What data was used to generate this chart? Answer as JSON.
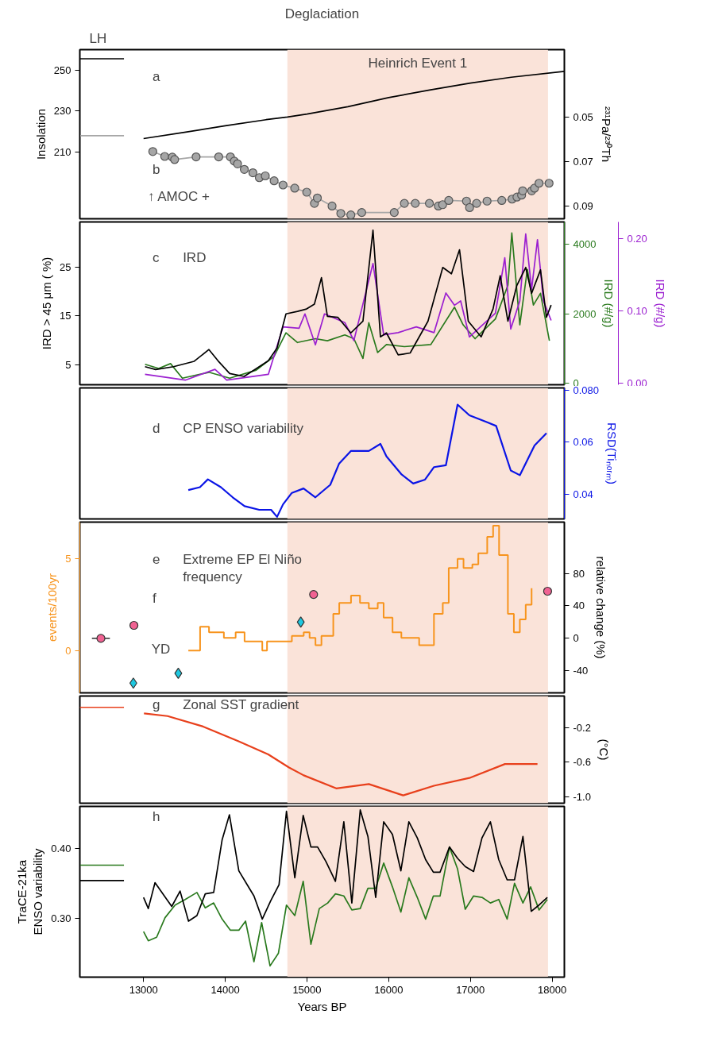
{
  "chart_data": [
    {
      "type": "line",
      "title": "Deglaciation",
      "subtitle": "LH",
      "ylabel": "Insolation",
      "y2label": "²³¹Pa/²³⁰Th",
      "xlim": [
        12220,
        18150
      ],
      "tick_labels": "y",
      "ylim": [
        177,
        260.3
      ],
      "yticks": [
        210,
        230,
        250
      ],
      "y2lim": [
        0.0956,
        0.0199
      ],
      "y2ticks": [
        0.05,
        0.07,
        0.09
      ],
      "series": [
        {
          "color": "#000000",
          "x": [
            13000,
            13500,
            14000,
            14500,
            14760,
            15000,
            15500,
            16000,
            16500,
            17000,
            17500,
            18150
          ],
          "values": [
            216.5,
            219.6,
            222.8,
            225.8,
            227.1,
            228.6,
            232.2,
            236.7,
            240.4,
            243.8,
            246.7,
            249.6
          ]
        },
        {
          "marker": "circle",
          "axis": "y2",
          "color": "#a6a6a6",
          "x": [
            13113,
            13259,
            13352,
            13380,
            13643,
            13920,
            14063,
            14110,
            14150,
            14233,
            14338,
            14417,
            14490,
            14598,
            14707,
            14850,
            14997,
            15091,
            15127,
            15307,
            15414,
            15537,
            15670,
            16068,
            16192,
            16325,
            16498,
            16608,
            16660,
            16735,
            16952,
            16990,
            17076,
            17204,
            17384,
            17510,
            17570,
            17627,
            17640,
            17750,
            17785,
            17840,
            17963
          ],
          "values": [
            0.0655,
            0.0677,
            0.068,
            0.0691,
            0.0679,
            0.0679,
            0.0679,
            0.0698,
            0.071,
            0.0735,
            0.075,
            0.0772,
            0.0764,
            0.0786,
            0.0805,
            0.0819,
            0.0837,
            0.0887,
            0.0863,
            0.0899,
            0.0932,
            0.0939,
            0.0928,
            0.0928,
            0.0887,
            0.0887,
            0.0887,
            0.0899,
            0.0893,
            0.0874,
            0.0877,
            0.0906,
            0.0887,
            0.0877,
            0.0874,
            0.0868,
            0.0859,
            0.085,
            0.0831,
            0.0831,
            0.0819,
            0.0797,
            0.0797
          ]
        },
        {
          "color": "#000000",
          "x": [
            12220,
            12760
          ],
          "values": [
            255.8,
            255.8
          ]
        },
        {
          "axis": "y2",
          "color": "#a6a6a6",
          "x": [
            12220,
            12760
          ],
          "values": [
            0.0584,
            0.0584
          ]
        }
      ],
      "bands": [
        {
          "axis": "x",
          "from": 14760,
          "to": 17950,
          "label": "Heinrich Event 1",
          "color": "#fae3d9"
        }
      ],
      "annotations": [
        "a",
        "b",
        "↑ AMOC +"
      ]
    },
    {
      "type": "line",
      "ylabel": "IRD > 45 μm ( %)",
      "y2label": "IRD (#/g)",
      "y3label": "IRD (#/g)",
      "xlim": [
        12220,
        18150
      ],
      "tick_labels": "y",
      "ylim": [
        0.9,
        34.2
      ],
      "yticks": [
        5,
        15,
        25
      ],
      "y2lim": [
        -50,
        4650
      ],
      "y2ticks": [
        0,
        2000,
        4000
      ],
      "y3lim": [
        -0.0024,
        0.2237
      ],
      "y3ticks": [
        {
          "value": 0,
          "label": "0.00"
        },
        {
          "value": 0.1,
          "label": "0.10"
        },
        {
          "value": 0.2,
          "label": "0.20"
        }
      ],
      "series": [
        {
          "axis": "y2",
          "color": "#2a7a1e",
          "x": [
            13018,
            13185,
            13330,
            13475,
            13800,
            14054,
            14379,
            14598,
            14743,
            14884,
            15103,
            15250,
            15463,
            15574,
            15685,
            15757,
            15865,
            15973,
            16192,
            16516,
            16806,
            16911,
            17057,
            17306,
            17459,
            17507,
            17605,
            17697,
            17771,
            17858,
            17967
          ],
          "values": [
            540,
            420,
            560,
            140,
            310,
            140,
            370,
            770,
            1450,
            1170,
            1280,
            1220,
            1390,
            1280,
            710,
            1740,
            880,
            1110,
            1050,
            1110,
            2190,
            1680,
            1280,
            1850,
            2820,
            4330,
            1680,
            3280,
            2250,
            2590,
            1220
          ]
        },
        {
          "axis": "y3",
          "color": "#9b1fd0",
          "x": [
            13018,
            13511,
            13874,
            14018,
            14527,
            14707,
            14903,
            14975,
            15103,
            15214,
            15463,
            15574,
            15808,
            15939,
            16116,
            16338,
            16555,
            16700,
            16806,
            16881,
            16988,
            17306,
            17421,
            17494,
            17605,
            17677,
            17749,
            17821,
            17894,
            17988
          ],
          "values": [
            0.012,
            0.004,
            0.019,
            0.004,
            0.012,
            0.078,
            0.076,
            0.096,
            0.053,
            0.096,
            0.084,
            0.059,
            0.166,
            0.067,
            0.07,
            0.078,
            0.07,
            0.125,
            0.108,
            0.114,
            0.064,
            0.097,
            0.174,
            0.075,
            0.114,
            0.207,
            0.13,
            0.199,
            0.114,
            0.087
          ]
        },
        {
          "color": "#000000",
          "x": [
            13018,
            13148,
            13367,
            13620,
            13800,
            13911,
            14054,
            14231,
            14379,
            14527,
            14634,
            14743,
            14884,
            14995,
            15091,
            15177,
            15250,
            15377,
            15537,
            15685,
            15808,
            15899,
            15973,
            16116,
            16263,
            16481,
            16662,
            16768,
            16867,
            16974,
            17132,
            17277,
            17365,
            17459,
            17568,
            17677,
            17749,
            17858,
            17931,
            17988
          ],
          "values": [
            4.6,
            4.0,
            4.6,
            5.7,
            8.1,
            5.8,
            3.2,
            2.6,
            4.2,
            5.8,
            8.4,
            15.4,
            15.9,
            16.4,
            17.4,
            22.8,
            14.9,
            14.7,
            11.5,
            13.9,
            32.5,
            10.7,
            11.5,
            7.0,
            7.4,
            13.9,
            24.9,
            23.6,
            28.5,
            13.9,
            10.7,
            16.4,
            23.2,
            13.9,
            21.2,
            24.9,
            19.6,
            24.4,
            14.7,
            17.2
          ]
        }
      ],
      "bands": [
        {
          "axis": "x",
          "from": 14760,
          "to": 17950,
          "color": "#fae3d9"
        }
      ],
      "annotations": [
        "c",
        "IRD"
      ]
    },
    {
      "type": "line",
      "y2label": "RSD(Tiₙₒᵣₘ)",
      "xlim": [
        12220,
        18150
      ],
      "tick_labels": "y",
      "y2lim": [
        0.0305,
        0.0808
      ],
      "y2ticks": [
        0.04,
        0.06,
        {
          "value": 0.08,
          "label": "0.080"
        }
      ],
      "series": [
        {
          "axis": "y2",
          "color": "#0a14e6",
          "x": [
            13548,
            13690,
            13787,
            13946,
            14091,
            14236,
            14416,
            14561,
            14634,
            14707,
            14815,
            14958,
            15103,
            15285,
            15394,
            15537,
            15757,
            15899,
            15973,
            16154,
            16300,
            16445,
            16555,
            16700,
            16843,
            16988,
            17206,
            17315,
            17494,
            17605,
            17785,
            17931
          ],
          "values": [
            0.0416,
            0.0427,
            0.0457,
            0.0427,
            0.0388,
            0.0354,
            0.034,
            0.034,
            0.0313,
            0.0361,
            0.0405,
            0.0422,
            0.0388,
            0.0436,
            0.0518,
            0.0566,
            0.0566,
            0.0593,
            0.0545,
            0.0477,
            0.0441,
            0.0456,
            0.0504,
            0.0511,
            0.0744,
            0.0703,
            0.0676,
            0.0662,
            0.0491,
            0.0473,
            0.0587,
            0.0634
          ]
        }
      ],
      "bands": [
        {
          "axis": "x",
          "from": 14760,
          "to": 17950,
          "color": "#fae3d9"
        }
      ],
      "annotations": [
        "d",
        "CP ENSO variability"
      ]
    },
    {
      "type": "step",
      "ylabel": "events/100yr",
      "y2label": "relative change (%)",
      "xlim": [
        12220,
        18150
      ],
      "tick_labels": "y",
      "ylim": [
        -2.3,
        7.0
      ],
      "yticks": [
        0,
        5
      ],
      "y2lim": [
        -67,
        143
      ],
      "y2ticks": [
        -40,
        0,
        40,
        80
      ],
      "series": [
        {
          "color": "#f7941d",
          "x": [
            13548,
            13692,
            13801,
            13983,
            14127,
            14236,
            14453,
            14511,
            14779,
            14815,
            14960,
            15032,
            15104,
            15177,
            15322,
            15395,
            15539,
            15649,
            15757,
            15866,
            15938,
            16047,
            16155,
            16265,
            16373,
            16481,
            16554,
            16662,
            16735,
            16843,
            16916,
            17024,
            17097,
            17206,
            17278,
            17351,
            17459,
            17532,
            17605,
            17677,
            17749
          ],
          "values": [
            0,
            1.3,
            1.0,
            0.7,
            1.0,
            0.5,
            0,
            0.5,
            0.5,
            0.8,
            1.0,
            0.7,
            0.3,
            0.8,
            2.0,
            2.6,
            3.0,
            2.6,
            2.3,
            2.6,
            1.8,
            1.0,
            0.7,
            0.7,
            0.3,
            0.3,
            2.0,
            2.6,
            4.5,
            5.0,
            4.5,
            4.7,
            5.3,
            6.2,
            6.8,
            5.2,
            2.0,
            1.0,
            1.7,
            2.5,
            3.4
          ]
        },
        {
          "type": "scatter",
          "marker": "circle",
          "axis": "y2",
          "color": "#f06292",
          "x": [
            12882,
            15081,
            17945
          ],
          "values": [
            16,
            54,
            58
          ]
        },
        {
          "type": "scatter",
          "marker": "circle",
          "axis": "y2",
          "color": "#f06292",
          "x": [
            12478
          ],
          "values": [
            0
          ],
          "xerrors": [
            110
          ]
        },
        {
          "type": "scatter",
          "marker": "diamond",
          "axis": "y2",
          "color": "#1ec8e0",
          "x": [
            12875,
            13425,
            14924
          ],
          "values": [
            -55,
            -43,
            20
          ]
        }
      ],
      "bands": [
        {
          "axis": "x",
          "from": 14760,
          "to": 17950,
          "color": "#fae3d9"
        }
      ],
      "annotations": [
        "e",
        "Extreme EP El Niño\nfrequency",
        "f",
        "YD"
      ]
    },
    {
      "type": "line",
      "y2label": "(°C)",
      "xlim": [
        12220,
        18150
      ],
      "tick_labels": "y",
      "y2lim": [
        -1.07,
        0.16
      ],
      "y2ticks": [
        -0.2,
        -0.6,
        {
          "value": -1.0,
          "label": "-1.0"
        }
      ],
      "series": [
        {
          "axis": "y2",
          "color": "#e8401c",
          "x": [
            13005,
            13294,
            13729,
            14163,
            14526,
            14780,
            14960,
            15358,
            15757,
            16177,
            16554,
            16988,
            17423,
            17821
          ],
          "values": [
            -0.04,
            -0.07,
            -0.19,
            -0.36,
            -0.51,
            -0.66,
            -0.75,
            -0.9,
            -0.85,
            -0.98,
            -0.87,
            -0.78,
            -0.62,
            -0.62
          ]
        },
        {
          "axis": "y2",
          "color": "#e8401c",
          "x": [
            12220,
            12760
          ],
          "values": [
            0.03,
            0.03
          ]
        }
      ],
      "bands": [
        {
          "axis": "x",
          "from": 14760,
          "to": 17950,
          "color": "#fae3d9"
        }
      ],
      "annotations": [
        "g",
        "Zonal SST gradient"
      ]
    },
    {
      "type": "line",
      "ylabel": "TraCE-21ka\nENSO variability",
      "xlabel": "Years BP",
      "xlim": [
        12220,
        18150
      ],
      "xticks": [
        13000,
        14000,
        15000,
        16000,
        17000,
        18000
      ],
      "ylim": [
        0.216,
        0.46
      ],
      "yticks": [
        {
          "value": 0.3,
          "label": "0.30"
        },
        {
          "value": 0.4,
          "label": "0.40"
        }
      ],
      "series": [
        {
          "color": "#2a7a1e",
          "x": [
            13000,
            13058,
            13160,
            13263,
            13386,
            13509,
            13653,
            13755,
            13858,
            13961,
            14063,
            14166,
            14248,
            14351,
            14445,
            14548,
            14650,
            14749,
            14851,
            14954,
            15048,
            15151,
            15254,
            15348,
            15451,
            15549,
            15652,
            15746,
            15841,
            15939,
            16046,
            16149,
            16247,
            16350,
            16452,
            16547,
            16629,
            16744,
            16842,
            16937,
            17039,
            17142,
            17245,
            17347,
            17450,
            17540,
            17643,
            17737,
            17840,
            17942
          ],
          "values": [
            0.281,
            0.268,
            0.273,
            0.301,
            0.319,
            0.327,
            0.337,
            0.315,
            0.322,
            0.299,
            0.283,
            0.283,
            0.296,
            0.238,
            0.294,
            0.232,
            0.25,
            0.319,
            0.304,
            0.353,
            0.263,
            0.314,
            0.322,
            0.335,
            0.332,
            0.312,
            0.314,
            0.343,
            0.343,
            0.379,
            0.345,
            0.309,
            0.358,
            0.33,
            0.299,
            0.332,
            0.332,
            0.402,
            0.371,
            0.313,
            0.332,
            0.33,
            0.322,
            0.327,
            0.299,
            0.35,
            0.322,
            0.345,
            0.312,
            0.327
          ]
        },
        {
          "color": "#000000",
          "x": [
            13000,
            13058,
            13140,
            13345,
            13447,
            13550,
            13653,
            13755,
            13858,
            13961,
            14051,
            14166,
            14269,
            14351,
            14453,
            14556,
            14658,
            14749,
            14851,
            14954,
            15048,
            15130,
            15233,
            15348,
            15451,
            15549,
            15652,
            15746,
            15841,
            15939,
            16046,
            16149,
            16247,
            16350,
            16452,
            16547,
            16629,
            16744,
            16842,
            16937,
            17039,
            17142,
            17245,
            17347,
            17450,
            17540,
            17643,
            17745,
            17840,
            17942
          ],
          "values": [
            0.33,
            0.314,
            0.351,
            0.317,
            0.339,
            0.296,
            0.304,
            0.335,
            0.337,
            0.412,
            0.448,
            0.368,
            0.348,
            0.332,
            0.299,
            0.325,
            0.348,
            0.453,
            0.358,
            0.447,
            0.402,
            0.402,
            0.381,
            0.353,
            0.438,
            0.322,
            0.455,
            0.417,
            0.33,
            0.438,
            0.42,
            0.368,
            0.438,
            0.415,
            0.384,
            0.366,
            0.366,
            0.402,
            0.386,
            0.374,
            0.367,
            0.415,
            0.438,
            0.384,
            0.355,
            0.355,
            0.417,
            0.31,
            0.319,
            0.33
          ]
        },
        {
          "color": "#000000",
          "x": [
            12220,
            12760
          ],
          "values": [
            0.354,
            0.354
          ]
        },
        {
          "color": "#2a7a1e",
          "x": [
            12220,
            12760
          ],
          "values": [
            0.376,
            0.376
          ]
        }
      ],
      "bands": [
        {
          "axis": "x",
          "from": 14760,
          "to": 17950,
          "color": "#fae3d9"
        }
      ],
      "annotations": [
        "h"
      ]
    }
  ]
}
